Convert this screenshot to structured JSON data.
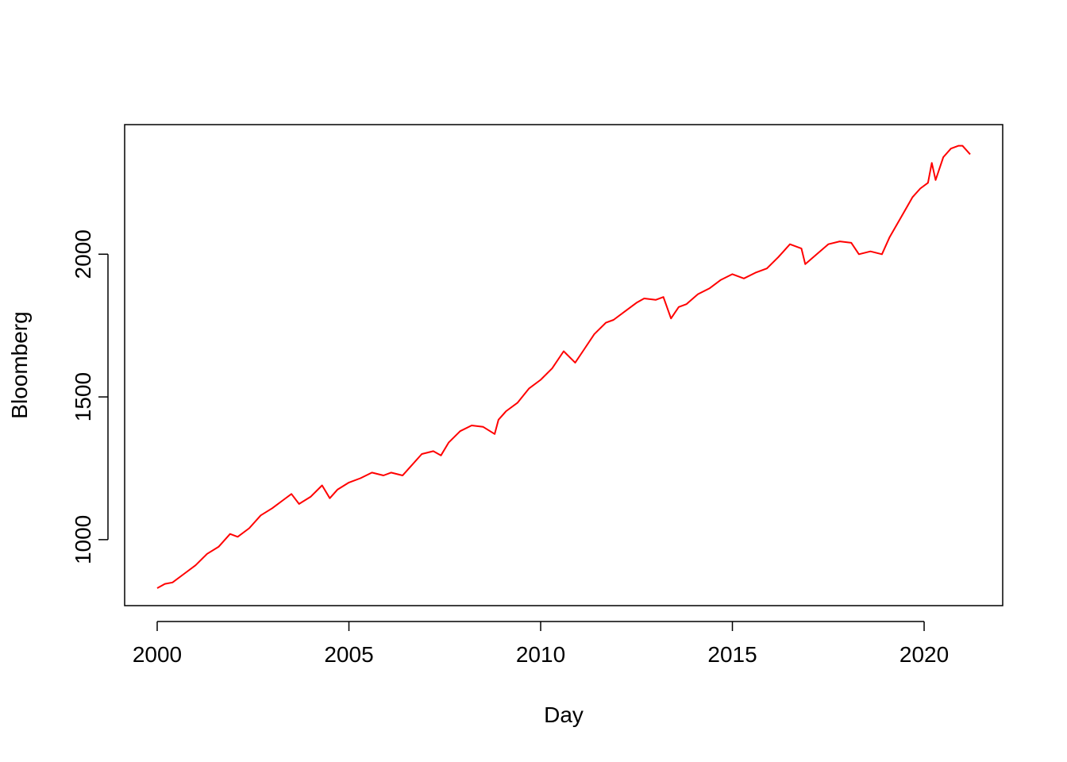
{
  "chart_data": {
    "type": "line",
    "title": "",
    "xlabel": "Day",
    "ylabel": "Bloomberg",
    "xlim": [
      2000,
      2021.2
    ],
    "ylim": [
      830,
      2390
    ],
    "xticks": [
      2000,
      2005,
      2010,
      2015,
      2020
    ],
    "xtick_labels": [
      "2000",
      "2005",
      "2010",
      "2015",
      "2020"
    ],
    "yticks": [
      1000,
      1500,
      2000
    ],
    "ytick_labels": [
      "1000",
      "1500",
      "2000"
    ],
    "grid": false,
    "legend": "none",
    "series": [
      {
        "color": "#ff0000",
        "x": [
          2000.0,
          2000.2,
          2000.4,
          2000.7,
          2001.0,
          2001.3,
          2001.6,
          2001.9,
          2002.1,
          2002.4,
          2002.7,
          2003.0,
          2003.3,
          2003.5,
          2003.7,
          2004.0,
          2004.3,
          2004.5,
          2004.7,
          2005.0,
          2005.3,
          2005.6,
          2005.9,
          2006.1,
          2006.4,
          2006.6,
          2006.9,
          2007.2,
          2007.4,
          2007.6,
          2007.9,
          2008.2,
          2008.5,
          2008.8,
          2008.9,
          2009.1,
          2009.4,
          2009.7,
          2010.0,
          2010.3,
          2010.6,
          2010.9,
          2011.1,
          2011.4,
          2011.7,
          2011.9,
          2012.2,
          2012.5,
          2012.7,
          2013.0,
          2013.2,
          2013.4,
          2013.6,
          2013.8,
          2014.1,
          2014.4,
          2014.7,
          2015.0,
          2015.3,
          2015.6,
          2015.9,
          2016.2,
          2016.5,
          2016.8,
          2016.9,
          2017.2,
          2017.5,
          2017.8,
          2018.1,
          2018.3,
          2018.6,
          2018.9,
          2019.1,
          2019.4,
          2019.7,
          2019.9,
          2020.1,
          2020.2,
          2020.3,
          2020.5,
          2020.7,
          2020.9,
          2021.0,
          2021.2
        ],
        "y": [
          830,
          845,
          850,
          880,
          910,
          950,
          975,
          1020,
          1010,
          1040,
          1085,
          1110,
          1140,
          1160,
          1125,
          1150,
          1190,
          1145,
          1175,
          1200,
          1215,
          1235,
          1225,
          1235,
          1225,
          1255,
          1300,
          1310,
          1295,
          1340,
          1380,
          1400,
          1395,
          1370,
          1420,
          1450,
          1480,
          1530,
          1560,
          1600,
          1660,
          1620,
          1660,
          1720,
          1760,
          1770,
          1800,
          1830,
          1845,
          1840,
          1850,
          1775,
          1815,
          1825,
          1860,
          1880,
          1910,
          1930,
          1915,
          1935,
          1950,
          1990,
          2035,
          2020,
          1965,
          2000,
          2035,
          2045,
          2040,
          2000,
          2010,
          2000,
          2060,
          2130,
          2200,
          2230,
          2250,
          2320,
          2260,
          2340,
          2370,
          2380,
          2380,
          2350
        ]
      }
    ]
  }
}
